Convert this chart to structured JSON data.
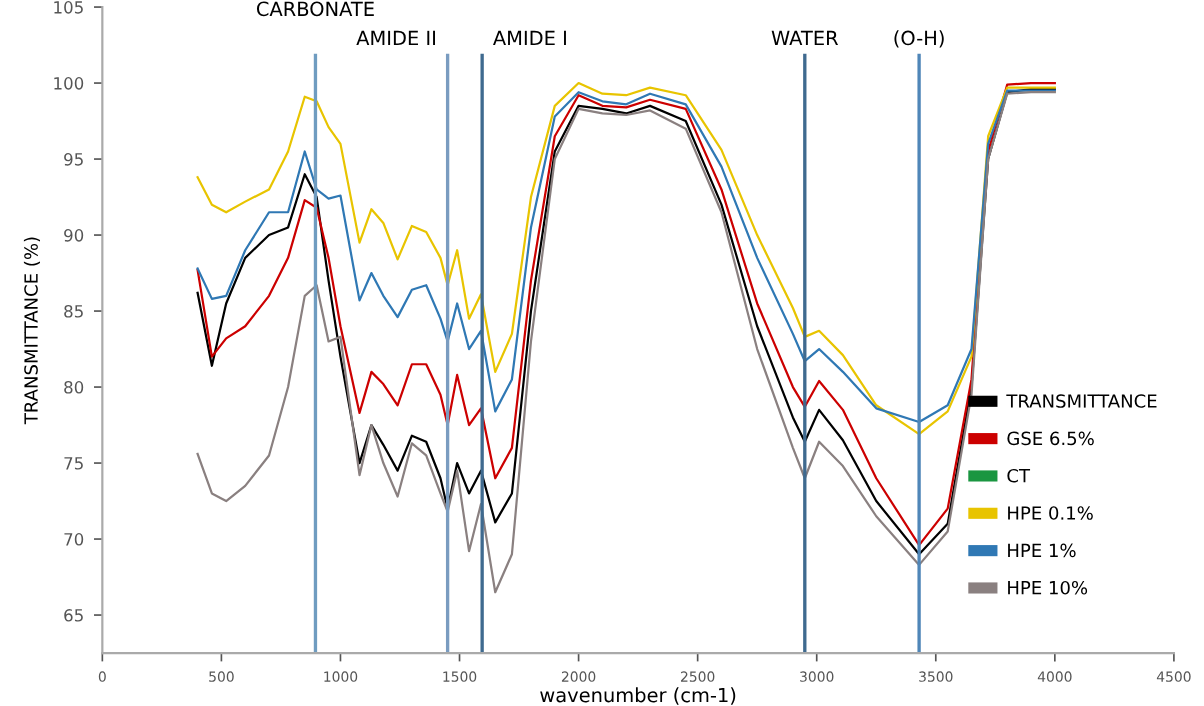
{
  "chart_data": {
    "type": "line",
    "xlabel": "wavenumber (cm-1)",
    "ylabel": "TRANSMITTANCE (%)",
    "x": [
      400,
      460,
      520,
      600,
      700,
      780,
      850,
      900,
      950,
      1000,
      1080,
      1130,
      1180,
      1240,
      1300,
      1360,
      1420,
      1450,
      1490,
      1540,
      1590,
      1650,
      1720,
      1800,
      1900,
      2000,
      2100,
      2200,
      2300,
      2450,
      2600,
      2750,
      2900,
      2950,
      3010,
      3110,
      3250,
      3430,
      3550,
      3650,
      3720,
      3800,
      3900,
      4000
    ],
    "series": [
      {
        "name": "TRANSMITTANCE",
        "color": "#000000",
        "values": [
          86.2,
          81.4,
          85.5,
          88.5,
          90.0,
          90.5,
          94.0,
          92.5,
          87.0,
          82.0,
          75.0,
          77.5,
          76.2,
          74.5,
          76.8,
          76.4,
          74.0,
          72.0,
          75.0,
          73.0,
          74.5,
          71.1,
          73.0,
          85.0,
          95.5,
          98.5,
          98.3,
          98.0,
          98.5,
          97.5,
          92.0,
          84.0,
          78.0,
          76.4,
          78.5,
          76.5,
          72.5,
          69.0,
          71.0,
          80.0,
          95.0,
          99.4,
          99.6,
          99.6
        ]
      },
      {
        "name": "GSE 6.5%",
        "color": "#cc0000",
        "values": [
          87.7,
          82.0,
          83.2,
          84.0,
          86.0,
          88.5,
          92.3,
          91.8,
          88.5,
          84.0,
          78.3,
          81.0,
          80.2,
          78.8,
          81.5,
          81.5,
          79.5,
          77.5,
          80.8,
          77.5,
          78.6,
          74.0,
          76.0,
          87.0,
          96.5,
          99.2,
          98.5,
          98.4,
          98.9,
          98.3,
          93.0,
          85.5,
          80.0,
          78.7,
          80.4,
          78.5,
          74.0,
          69.6,
          72.0,
          80.5,
          95.5,
          99.9,
          100.0,
          100.0
        ]
      },
      {
        "name": "CT",
        "color": "#1a9641",
        "values": [
          null,
          null,
          null,
          null,
          null,
          null,
          null,
          null,
          null,
          null,
          null,
          null,
          null,
          null,
          null,
          null,
          null,
          null,
          null,
          null,
          null,
          null,
          null,
          null,
          null,
          null,
          null,
          null,
          null,
          null,
          null,
          null,
          null,
          null,
          null,
          null,
          null,
          null,
          null,
          null,
          null,
          null,
          null,
          null
        ]
      },
      {
        "name": "HPE 0.1%",
        "color": "#e8c400",
        "values": [
          93.8,
          92.0,
          91.5,
          92.2,
          93.0,
          95.5,
          99.1,
          98.8,
          97.1,
          96.0,
          89.5,
          91.7,
          90.8,
          88.4,
          90.6,
          90.2,
          88.5,
          86.7,
          89.0,
          84.5,
          86.1,
          81.0,
          83.5,
          92.5,
          98.5,
          100.0,
          99.3,
          99.2,
          99.7,
          99.2,
          95.6,
          90.0,
          85.2,
          83.3,
          83.7,
          82.1,
          78.8,
          76.9,
          78.4,
          82.0,
          96.5,
          99.7,
          99.7,
          99.7
        ]
      },
      {
        "name": "HPE 1%",
        "color": "#2f78b4",
        "values": [
          87.8,
          85.8,
          86.0,
          89.0,
          91.5,
          91.5,
          95.5,
          93.0,
          92.4,
          92.6,
          85.7,
          87.5,
          86.0,
          84.6,
          86.4,
          86.7,
          84.5,
          83.0,
          85.5,
          82.5,
          83.7,
          78.4,
          80.5,
          90.5,
          97.8,
          99.4,
          98.8,
          98.6,
          99.3,
          98.6,
          94.5,
          88.5,
          83.5,
          81.7,
          82.5,
          81.0,
          78.6,
          77.7,
          78.8,
          82.5,
          96.0,
          99.5,
          99.5,
          99.5
        ]
      },
      {
        "name": "HPE 10%",
        "color": "#8a8080",
        "values": [
          75.6,
          73.0,
          72.5,
          73.5,
          75.5,
          80.0,
          86.0,
          86.7,
          83.0,
          83.3,
          74.2,
          77.5,
          75.0,
          72.8,
          76.3,
          75.5,
          73.0,
          71.8,
          74.5,
          69.2,
          72.3,
          66.5,
          69.0,
          83.0,
          95.0,
          98.3,
          98.0,
          97.9,
          98.2,
          97.0,
          91.5,
          82.5,
          76.0,
          74.0,
          76.4,
          74.8,
          71.5,
          68.3,
          70.5,
          79.5,
          95.0,
          99.3,
          99.4,
          99.4
        ]
      }
    ],
    "xlim": [
      0,
      4500
    ],
    "xticks": [
      0,
      500,
      1000,
      1500,
      2000,
      2500,
      3000,
      3500,
      4000,
      4500
    ],
    "ylim": [
      62.5,
      105
    ],
    "yticks": [
      65,
      70,
      75,
      80,
      85,
      90,
      95,
      100,
      105
    ],
    "ref_lines": [
      {
        "axis": "x",
        "value": 895,
        "label": "CARBONATE",
        "color": "#6f9cc0"
      },
      {
        "axis": "x",
        "value": 1450,
        "label": "AMIDE II",
        "color": "#7a9cc0"
      },
      {
        "axis": "x",
        "value": 1595,
        "label": "AMIDE I",
        "color": "#3f6a8f"
      },
      {
        "axis": "x",
        "value": 2950,
        "label": "WATER",
        "color": "#3f6a8f"
      },
      {
        "axis": "x",
        "value": 3430,
        "label": "(O-H)",
        "color": "#4f86b8"
      }
    ],
    "legend": "bottom right",
    "grid": false,
    "marker": "none",
    "line_style": "solid"
  }
}
